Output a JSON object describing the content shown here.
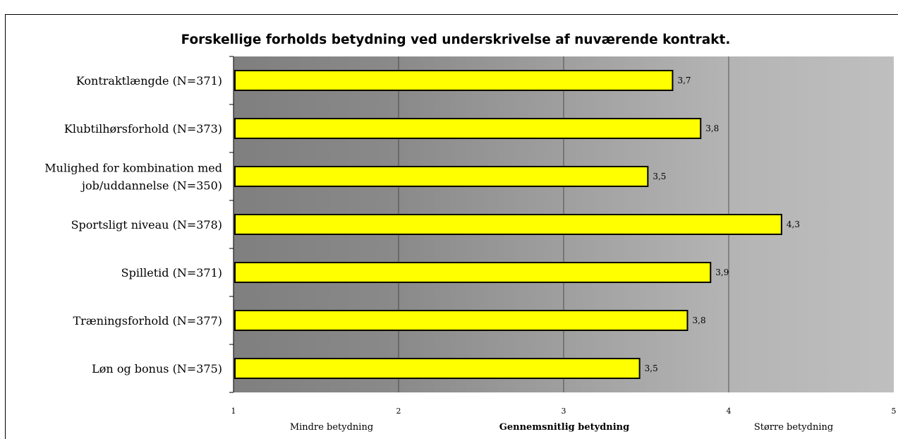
{
  "chart_data": {
    "type": "bar",
    "orientation": "horizontal",
    "title": "Forskellige forholds betydning ved underskrivelse af nuværende kontrakt.",
    "categories": [
      [
        "Kontraktlængde (N=371)"
      ],
      [
        "Klubtilhørsforhold (N=373)"
      ],
      [
        "Mulighed for kombination med",
        "job/uddannelse (N=350)"
      ],
      [
        "Sportsligt niveau (N=378)"
      ],
      [
        "Spilletid (N=371)"
      ],
      [
        "Træningsforhold (N=377)"
      ],
      [
        "Løn og bonus (N=375)"
      ]
    ],
    "values": [
      3.66,
      3.83,
      3.51,
      4.32,
      3.89,
      3.75,
      3.46
    ],
    "value_labels": [
      "3,7",
      "3,8",
      "3,5",
      "4,3",
      "3,9",
      "3,8",
      "3,5"
    ],
    "xlim": [
      1,
      5
    ],
    "xticks": [
      "1",
      "2",
      "3",
      "4",
      "5"
    ],
    "region_labels": {
      "left": "Mindre betydning",
      "center": "Gennemsnitlig betydning",
      "right": "Større betydning"
    },
    "grid": true,
    "legend": "none",
    "colors": {
      "bar_fill": "#ffff00",
      "bar_stroke": "#000000",
      "bg_dark": "#7f7f7f",
      "bg_light": "#bfbfbf",
      "gridline": "#3a3a3a"
    }
  }
}
